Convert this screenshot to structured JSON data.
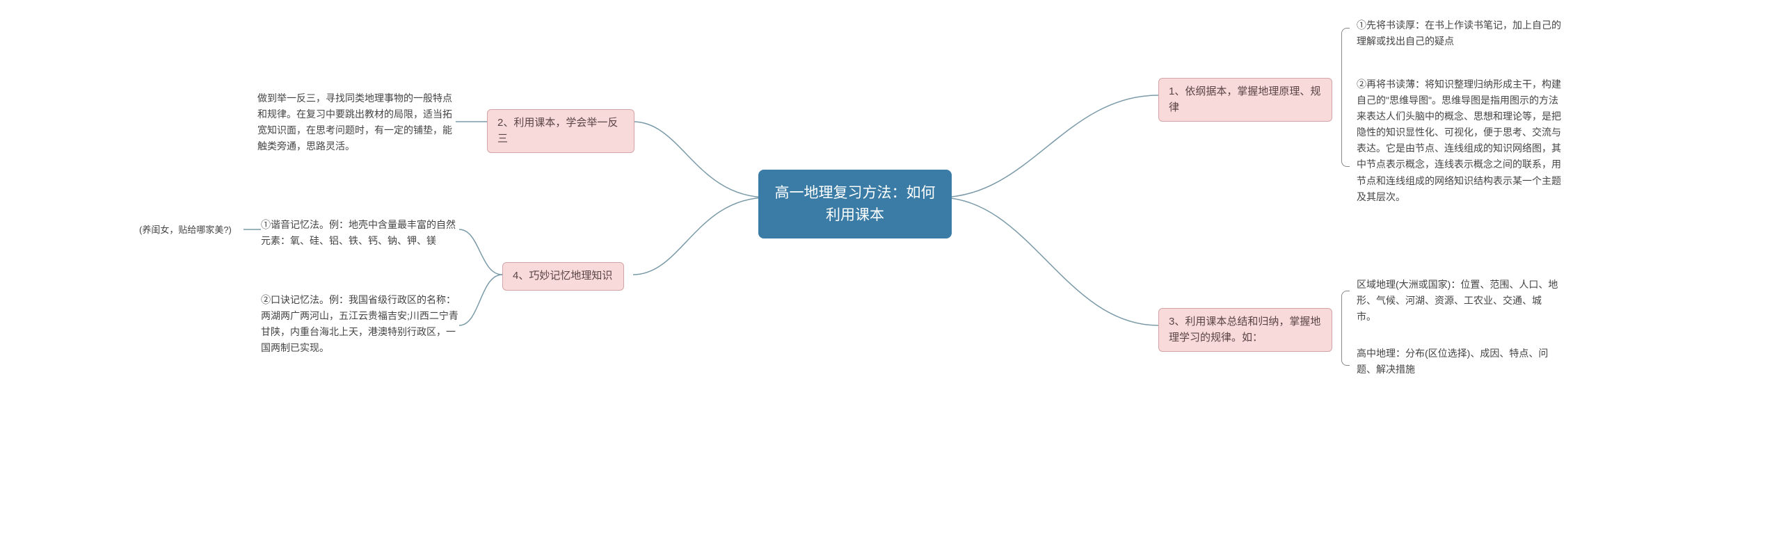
{
  "root": {
    "text": "高一地理复习方法：如何\n利用课本",
    "bg": "#3a7ca5",
    "color": "#ffffff"
  },
  "branch_bg": "#f8dadb",
  "branch_border": "#d4a5a8",
  "connector_color": "#7a9aa8",
  "branches": {
    "b1": {
      "text": "1、依纲据本，掌握地理原理、规律"
    },
    "b2": {
      "text": "2、利用课本，学会举一反三"
    },
    "b3": {
      "text": "3、利用课本总结和归纳，掌握地理学习的规律。如："
    },
    "b4": {
      "text": "4、巧妙记忆地理知识"
    }
  },
  "leaves": {
    "l1a": "①先将书读厚：在书上作读书笔记，加上自己的理解或找出自己的疑点",
    "l1b": "②再将书读薄：将知识整理归纳形成主干，构建自己的\"思维导图\"。思维导图是指用图示的方法来表达人们头脑中的概念、思想和理论等，是把隐性的知识显性化、可视化，便于思考、交流与表达。它是由节点、连线组成的知识网络图，其中节点表示概念，连线表示概念之间的联系，用节点和连线组成的网络知识结构表示某一个主题及其层次。",
    "l2a": "做到举一反三，寻找同类地理事物的一般特点和规律。在复习中要跳出教材的局限，适当拓宽知识面，在思考问题时，有一定的铺垫，能触类旁通，思路灵活。",
    "l3a": "区域地理(大洲或国家)：位置、范围、人口、地形、气候、河湖、资源、工农业、交通、城市。",
    "l3b": "高中地理：分布(区位选择)、成因、特点、问题、解决措施",
    "l4a": "①谐音记忆法。例：地壳中含量最丰富的自然元素：氧、硅、铝、铁、钙、钠、钾、镁",
    "l4a_note": "(养闺女，贴给哪家美?)",
    "l4b": "②口诀记忆法。例：我国省级行政区的名称：两湖两广两河山，五江云贵福吉安;川西二宁青甘陕，内重台海北上天，港澳特别行政区，一国两制已实现。"
  }
}
